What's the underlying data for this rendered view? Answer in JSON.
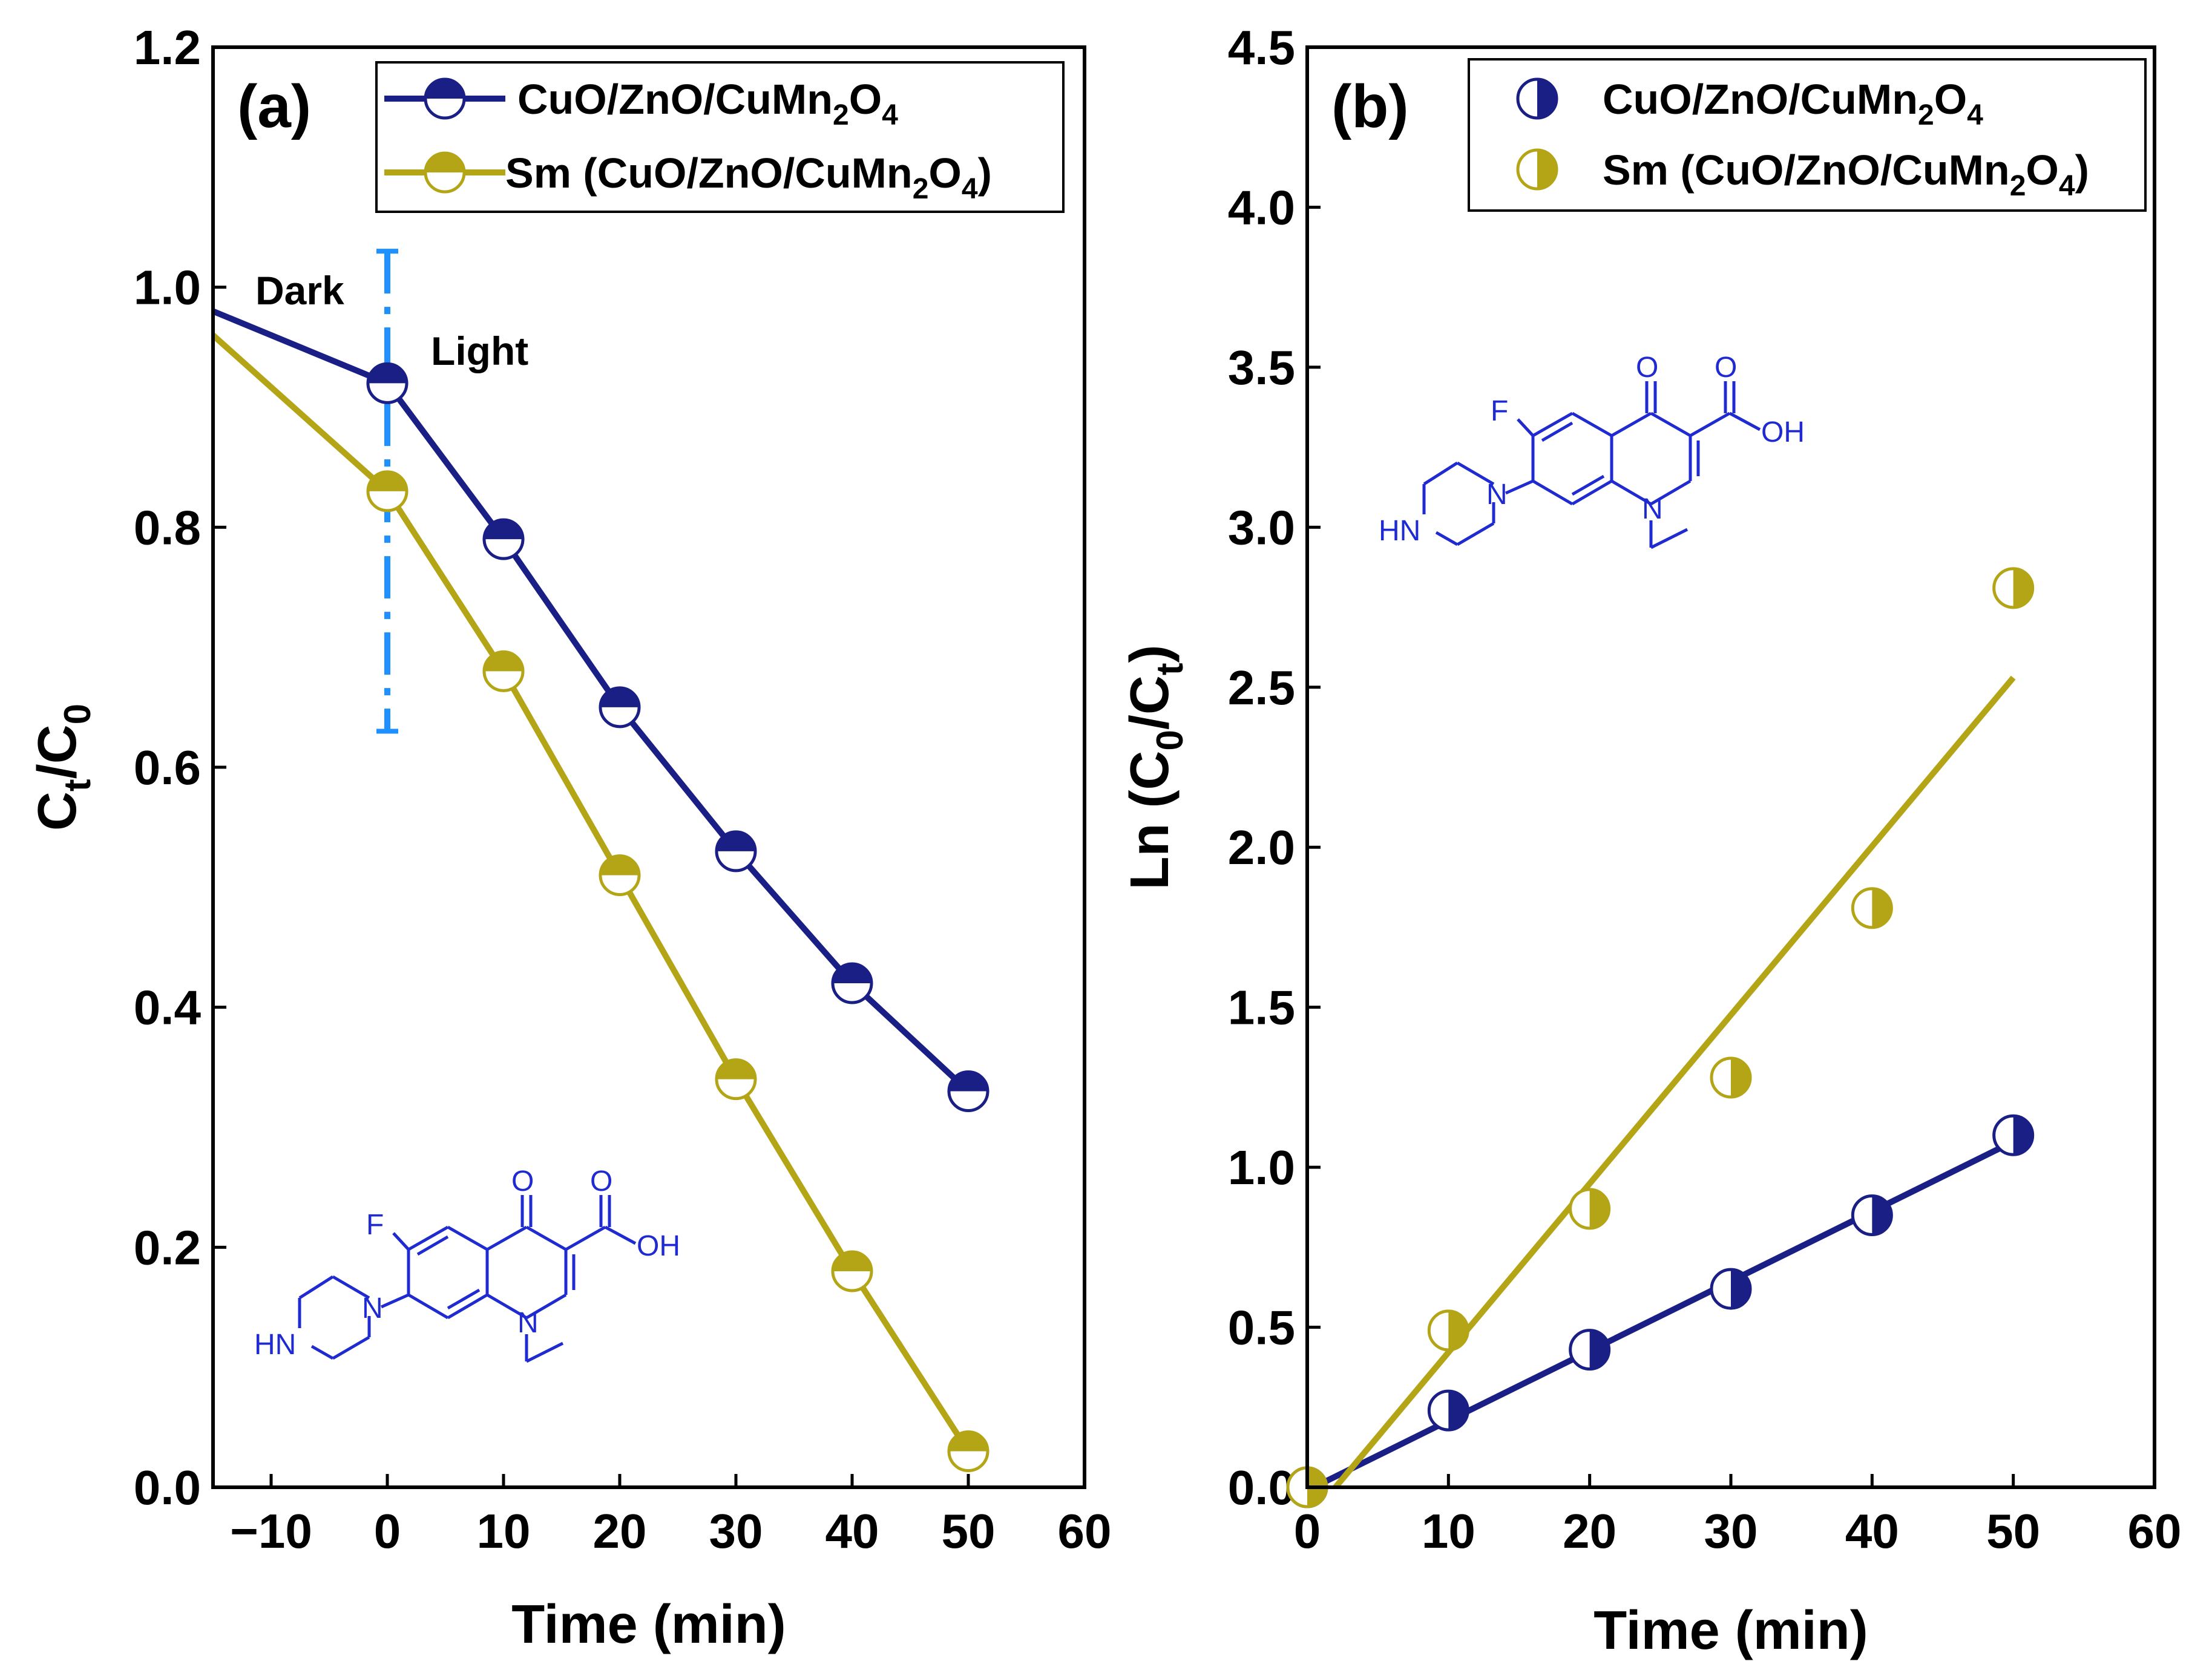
{
  "colors": {
    "navy": "#1a1f86",
    "olive": "#b3a516",
    "divider": "#1e90ff",
    "molecule": "#1f2bd0"
  },
  "chart_data": [
    {
      "type": "line",
      "panel_label": "(a)",
      "xlabel": "Time (min)",
      "ylabel": "Ct/C0",
      "ylabel_main": "C",
      "ylabel_sub1": "t",
      "ylabel_mid": "/C",
      "ylabel_sub2": "0",
      "xlim": [
        -15,
        60
      ],
      "ylim": [
        0.0,
        1.2
      ],
      "xticks": [
        -10,
        0,
        10,
        20,
        30,
        40,
        50,
        60
      ],
      "xtick_labels": [
        "−10",
        "0",
        "10",
        "20",
        "30",
        "40",
        "50",
        "60"
      ],
      "yticks": [
        0.0,
        0.2,
        0.4,
        0.6,
        0.8,
        1.0,
        1.2
      ],
      "ytick_labels": [
        "0.0",
        "0.2",
        "0.4",
        "0.6",
        "0.8",
        "1.0",
        "1.2"
      ],
      "legend_position": "top-right",
      "annotations": {
        "dark": "Dark",
        "light": "Light"
      },
      "dark_light_boundary_x": 0,
      "divider_range": [
        0.63,
        1.03
      ],
      "series": [
        {
          "name": "CuO/ZnO/CuMn2O4",
          "label_parts": [
            "CuO/ZnO/CuMn",
            "2",
            "O",
            "4",
            ""
          ],
          "color_key": "navy",
          "marker": "half-filled-square-top",
          "line_start": [
            -15,
            0.98
          ],
          "x": [
            0,
            10,
            20,
            30,
            40,
            50
          ],
          "y": [
            0.92,
            0.79,
            0.65,
            0.53,
            0.42,
            0.33
          ]
        },
        {
          "name": "Sm (CuO/ZnO/CuMn2O4)",
          "label_parts": [
            "Sm (CuO/ZnO/CuMn",
            "2",
            "O",
            "4",
            ")"
          ],
          "color_key": "olive",
          "marker": "half-filled-circle-top",
          "line_start": [
            -15,
            0.96
          ],
          "x": [
            0,
            10,
            20,
            30,
            40,
            50
          ],
          "y": [
            0.83,
            0.68,
            0.51,
            0.34,
            0.18,
            0.03
          ]
        }
      ]
    },
    {
      "type": "scatter",
      "panel_label": "(b)",
      "xlabel": "Time (min)",
      "ylabel": "Ln (C0/Ct)",
      "ylabel_main": "Ln (C",
      "ylabel_sub1": "0",
      "ylabel_mid": "/C",
      "ylabel_sub2": "t",
      "ylabel_end": ")",
      "xlim": [
        0,
        60
      ],
      "ylim": [
        0.0,
        4.5
      ],
      "xticks": [
        0,
        10,
        20,
        30,
        40,
        50,
        60
      ],
      "xtick_labels": [
        "0",
        "10",
        "20",
        "30",
        "40",
        "50",
        "60"
      ],
      "yticks": [
        0.0,
        0.5,
        1.0,
        1.5,
        2.0,
        2.5,
        3.0,
        3.5,
        4.0,
        4.5
      ],
      "ytick_labels": [
        "0.0",
        "0.5",
        "1.0",
        "1.5",
        "2.0",
        "2.5",
        "3.0",
        "3.5",
        "4.0",
        "4.5"
      ],
      "legend_position": "top-right",
      "series": [
        {
          "name": "CuO/ZnO/CuMn2O4",
          "label_parts": [
            "CuO/ZnO/CuMn",
            "2",
            "O",
            "4",
            ""
          ],
          "color_key": "navy",
          "marker": "half-filled-square-right",
          "x": [
            0,
            10,
            20,
            30,
            40,
            50
          ],
          "y": [
            0.0,
            0.24,
            0.43,
            0.62,
            0.85,
            1.1
          ],
          "fit": {
            "x": [
              0,
              50
            ],
            "y": [
              -0.01,
              1.08
            ]
          }
        },
        {
          "name": "Sm (CuO/ZnO/CuMn2O4)",
          "label_parts": [
            "Sm (CuO/ZnO/CuMn",
            "2",
            "O",
            "4",
            ")"
          ],
          "color_key": "olive",
          "marker": "half-filled-circle-right",
          "x": [
            0,
            10,
            20,
            30,
            40,
            50
          ],
          "y": [
            0.0,
            0.49,
            0.87,
            1.28,
            1.81,
            2.81
          ],
          "fit": {
            "x": [
              2,
              50
            ],
            "y": [
              0.0,
              2.53
            ]
          }
        }
      ]
    }
  ],
  "molecule_labels": {
    "oxygen": "O",
    "hydroxyl": "OH",
    "fluorine": "F",
    "nitrogen": "N",
    "amine": "HN"
  }
}
